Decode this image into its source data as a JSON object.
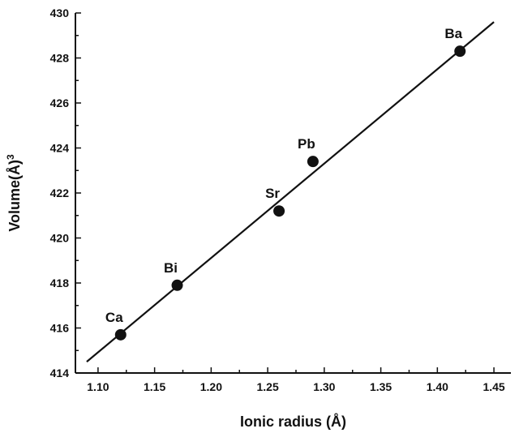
{
  "chart_data": {
    "type": "scatter",
    "title": "",
    "xlabel": "Ionic radius (Å)",
    "ylabel": "Volume(Å)",
    "ylabel_sup": "3",
    "xlim": [
      1.08,
      1.465
    ],
    "ylim": [
      414,
      430
    ],
    "xticks": [
      1.1,
      1.15,
      1.2,
      1.25,
      1.3,
      1.35,
      1.4,
      1.45
    ],
    "xtick_labels": [
      "1.10",
      "1.15",
      "1.20",
      "1.25",
      "1.30",
      "1.35",
      "1.40",
      "1.45"
    ],
    "yticks": [
      414,
      416,
      418,
      420,
      422,
      424,
      426,
      428,
      430
    ],
    "ytick_labels": [
      "414",
      "416",
      "418",
      "420",
      "422",
      "424",
      "426",
      "428",
      "430"
    ],
    "grid": false,
    "legend": "none",
    "points": [
      {
        "label": "Ca",
        "x": 1.12,
        "y": 415.7
      },
      {
        "label": "Bi",
        "x": 1.17,
        "y": 417.9
      },
      {
        "label": "Sr",
        "x": 1.26,
        "y": 421.2
      },
      {
        "label": "Pb",
        "x": 1.29,
        "y": 423.4
      },
      {
        "label": "Ba",
        "x": 1.42,
        "y": 428.3
      }
    ],
    "fit_line": {
      "x": [
        1.09,
        1.45
      ],
      "y": [
        414.5,
        429.6
      ]
    }
  }
}
